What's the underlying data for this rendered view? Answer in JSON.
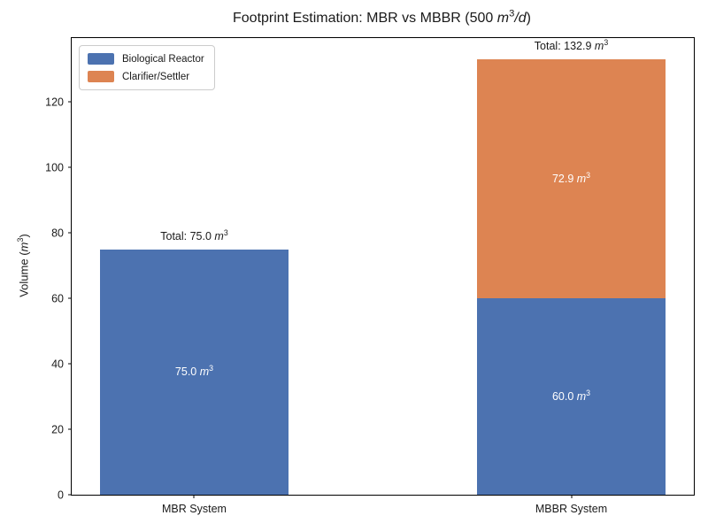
{
  "title": {
    "pre": "Footprint Estimation: MBR vs MBBR (500 ",
    "unit_main": "m",
    "unit_sup": "3",
    "unit_post": "/d",
    "post": ")"
  },
  "y_axis": {
    "label_pre": "Volume (",
    "unit_main": "m",
    "unit_sup": "3",
    "label_post": ")"
  },
  "labels": {
    "total_prefix": "Total: ",
    "unit_main": "m",
    "unit_sup": "3"
  },
  "colors": {
    "biological_reactor": "#4C72B0",
    "clarifier_settler": "#DD8452",
    "text": "#1a1a1a",
    "spine": "#000000",
    "legend_border": "#cccccc",
    "background": "#ffffff"
  },
  "chart_data": {
    "type": "bar",
    "stacked": true,
    "title": "Footprint Estimation: MBR vs MBBR (500 m³/d)",
    "ylabel": "Volume (m³)",
    "xlabel": "",
    "categories": [
      "MBR System",
      "MBBR System"
    ],
    "series": [
      {
        "name": "Biological Reactor",
        "color": "#4C72B0",
        "values": [
          75.0,
          60.0
        ]
      },
      {
        "name": "Clarifier/Settler",
        "color": "#DD8452",
        "values": [
          0,
          72.9
        ]
      }
    ],
    "totals": [
      75.0,
      132.9
    ],
    "segment_labels": [
      [
        "75.0 m³",
        "60.0 m³"
      ],
      [
        null,
        "72.9 m³"
      ]
    ],
    "total_labels": [
      "Total: 75.0 m³",
      "Total: 132.9 m³"
    ],
    "ylim": [
      0,
      139.5
    ],
    "yticks": [
      0,
      20,
      40,
      60,
      80,
      100,
      120
    ],
    "grid": false,
    "legend_position": "upper left"
  }
}
